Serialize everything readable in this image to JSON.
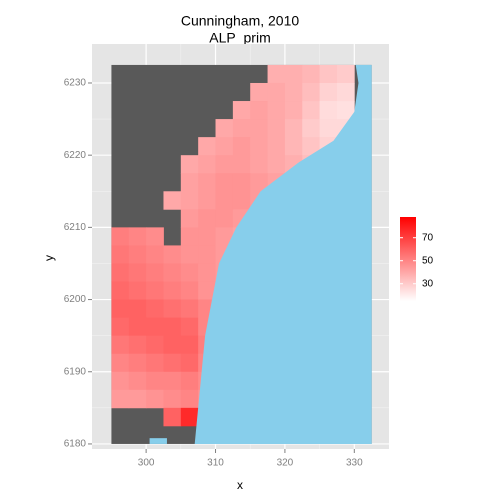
{
  "chart_data": {
    "type": "raster",
    "title": "Cunningham, 2010",
    "subtitle": "ALP_prim",
    "x_label": "x",
    "y_label": "y",
    "xlim": [
      292.2,
      335
    ],
    "ylim": [
      6179.3,
      6235.4
    ],
    "xticks": [
      300,
      310,
      320,
      330
    ],
    "yticks": [
      6180,
      6190,
      6200,
      6210,
      6220,
      6230
    ],
    "grid": true,
    "legend": "right",
    "masked_color": "#595959",
    "sea_color": "#87ceeb",
    "low_color": "#ffffff",
    "high_color": "#ff0000",
    "color_limits": [
      15,
      88
    ],
    "color_ticks": [
      30,
      50,
      70
    ],
    "x": [
      296.25,
      298.75,
      301.25,
      303.75,
      306.25,
      308.75,
      311.25,
      313.75,
      316.25,
      318.75,
      321.25,
      323.75,
      326.25,
      328.75,
      331.25
    ],
    "y": [
      6231.25,
      6228.75,
      6226.25,
      6223.75,
      6221.25,
      6218.75,
      6216.25,
      6213.75,
      6211.25,
      6208.75,
      6206.25,
      6203.75,
      6201.25,
      6198.75,
      6196.25,
      6193.75,
      6191.25,
      6188.75,
      6186.25,
      6183.75,
      6181.25
    ],
    "values": [
      [
        null,
        null,
        null,
        null,
        null,
        null,
        null,
        null,
        null,
        38,
        38,
        36,
        32,
        30,
        null
      ],
      [
        null,
        null,
        null,
        null,
        null,
        null,
        null,
        null,
        40,
        40,
        38,
        34,
        28,
        26,
        null
      ],
      [
        null,
        null,
        null,
        null,
        null,
        null,
        null,
        40,
        42,
        40,
        38,
        32,
        25,
        24,
        null
      ],
      [
        null,
        null,
        null,
        null,
        null,
        null,
        40,
        42,
        42,
        40,
        36,
        30,
        26,
        26,
        null
      ],
      [
        null,
        null,
        null,
        null,
        null,
        40,
        42,
        44,
        42,
        40,
        36,
        32,
        28,
        null,
        null
      ],
      [
        null,
        null,
        null,
        null,
        40,
        42,
        44,
        44,
        42,
        40,
        38,
        34,
        null,
        null,
        null
      ],
      [
        null,
        null,
        null,
        null,
        42,
        44,
        46,
        46,
        44,
        42,
        null,
        null,
        null,
        null,
        null
      ],
      [
        null,
        null,
        null,
        40,
        42,
        44,
        46,
        46,
        44,
        null,
        null,
        null,
        null,
        null,
        null
      ],
      [
        null,
        null,
        null,
        null,
        44,
        46,
        46,
        44,
        null,
        null,
        null,
        null,
        null,
        null,
        null
      ],
      [
        52,
        50,
        48,
        null,
        46,
        46,
        44,
        42,
        null,
        null,
        null,
        null,
        null,
        null,
        null
      ],
      [
        54,
        52,
        50,
        48,
        46,
        46,
        44,
        null,
        null,
        null,
        null,
        null,
        null,
        null,
        null
      ],
      [
        56,
        54,
        52,
        50,
        48,
        46,
        44,
        null,
        null,
        null,
        null,
        null,
        null,
        null,
        null
      ],
      [
        58,
        56,
        54,
        52,
        50,
        46,
        44,
        null,
        null,
        null,
        null,
        null,
        null,
        null,
        null
      ],
      [
        60,
        60,
        58,
        56,
        54,
        50,
        null,
        null,
        null,
        null,
        null,
        null,
        null,
        null,
        null
      ],
      [
        58,
        60,
        60,
        60,
        58,
        50,
        null,
        null,
        null,
        null,
        null,
        null,
        null,
        null,
        null
      ],
      [
        54,
        56,
        58,
        60,
        60,
        52,
        null,
        null,
        null,
        null,
        null,
        null,
        null,
        null,
        null
      ],
      [
        50,
        52,
        54,
        56,
        58,
        50,
        null,
        null,
        null,
        null,
        null,
        null,
        null,
        null,
        null
      ],
      [
        46,
        48,
        50,
        50,
        52,
        48,
        null,
        null,
        null,
        null,
        null,
        null,
        null,
        null,
        null
      ],
      [
        44,
        44,
        46,
        48,
        50,
        46,
        null,
        null,
        null,
        null,
        null,
        null,
        null,
        null,
        null
      ],
      [
        null,
        null,
        null,
        60,
        76,
        74,
        null,
        null,
        null,
        null,
        null,
        null,
        null,
        null,
        null
      ],
      [
        null,
        null,
        null,
        null,
        null,
        null,
        null,
        null,
        null,
        null,
        null,
        null,
        null,
        null,
        null
      ]
    ]
  }
}
